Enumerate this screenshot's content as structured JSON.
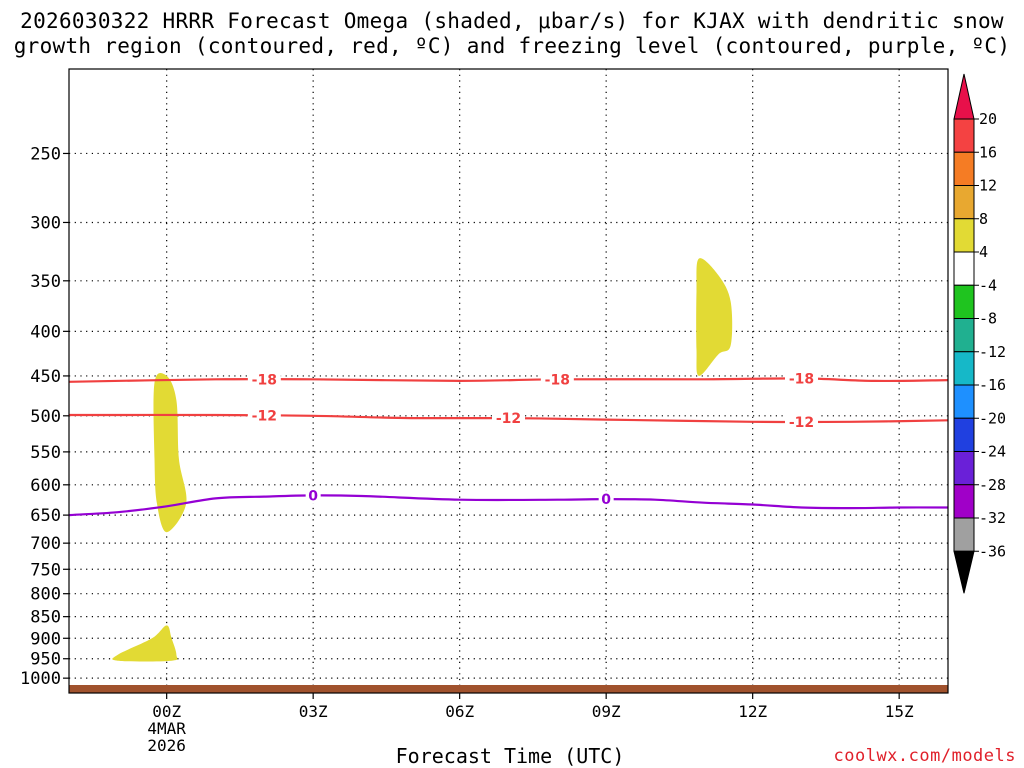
{
  "title_line1": "2026030322 HRRR Forecast Omega (shaded, μbar/s) for KJAX with dendritic snow",
  "title_line2": "growth region (contoured, red, ºC) and freezing level (contoured, purple, ºC)",
  "credit": "coolwx.com/models",
  "chart_data": {
    "type": "contour",
    "xlabel": "Forecast Time (UTC)",
    "ylabel": "",
    "x_unit": "hours since 2026-03-04 00Z",
    "xlim": [
      -2,
      16
    ],
    "ylim_hpa": [
      1040,
      200
    ],
    "y_scale": "log-pressure",
    "x_ticks": [
      {
        "x": 0,
        "lines": [
          "00Z",
          "4MAR",
          "2026"
        ]
      },
      {
        "x": 3,
        "lines": [
          "03Z"
        ]
      },
      {
        "x": 6,
        "lines": [
          "06Z"
        ]
      },
      {
        "x": 9,
        "lines": [
          "09Z"
        ]
      },
      {
        "x": 12,
        "lines": [
          "12Z"
        ]
      },
      {
        "x": 15,
        "lines": [
          "15Z"
        ]
      }
    ],
    "y_ticks": [
      250,
      300,
      350,
      400,
      450,
      500,
      550,
      600,
      650,
      700,
      750,
      800,
      850,
      900,
      950,
      1000
    ],
    "grid": true,
    "contours": [
      {
        "name": "-18",
        "color": "#f04040",
        "labels_at_x": [
          2,
          8,
          13
        ],
        "points": [
          [
            -2,
            457
          ],
          [
            1,
            454
          ],
          [
            3,
            454
          ],
          [
            6,
            456
          ],
          [
            8,
            454
          ],
          [
            11,
            454
          ],
          [
            13,
            453
          ],
          [
            14.5,
            456
          ],
          [
            16,
            455
          ]
        ]
      },
      {
        "name": "-12",
        "color": "#f04040",
        "labels_at_x": [
          2,
          7,
          13
        ],
        "points": [
          [
            -2,
            499
          ],
          [
            1,
            499
          ],
          [
            3,
            500
          ],
          [
            5,
            503
          ],
          [
            7,
            503
          ],
          [
            9,
            505
          ],
          [
            12,
            508
          ],
          [
            14,
            508
          ],
          [
            16,
            506
          ]
        ]
      },
      {
        "name": "0",
        "color": "#9400d3",
        "labels_at_x": [
          3,
          9
        ],
        "points": [
          [
            -2,
            650
          ],
          [
            -1,
            645
          ],
          [
            0,
            635
          ],
          [
            1,
            622
          ],
          [
            2,
            619
          ],
          [
            3,
            617
          ],
          [
            4,
            618
          ],
          [
            6,
            624
          ],
          [
            8,
            624
          ],
          [
            9,
            623
          ],
          [
            10,
            624
          ],
          [
            11,
            629
          ],
          [
            12,
            632
          ],
          [
            13,
            637
          ],
          [
            14,
            638
          ],
          [
            15,
            637
          ],
          [
            16,
            637
          ]
        ]
      }
    ],
    "shaded_regions": [
      {
        "level": "4 to 8",
        "color": "#e2da34",
        "points": [
          [
            -0.25,
            458
          ],
          [
            0,
            450
          ],
          [
            0.2,
            480
          ],
          [
            0.25,
            560
          ],
          [
            0.4,
            630
          ],
          [
            0,
            680
          ],
          [
            -0.2,
            630
          ],
          [
            -0.25,
            560
          ]
        ]
      },
      {
        "level": "4 to 8",
        "color": "#e2da34",
        "points": [
          [
            10.9,
            330
          ],
          [
            11.3,
            345
          ],
          [
            11.55,
            370
          ],
          [
            11.55,
            415
          ],
          [
            11.3,
            425
          ],
          [
            10.9,
            450
          ],
          [
            10.85,
            420
          ],
          [
            10.85,
            360
          ]
        ]
      },
      {
        "level": "4 to 8",
        "color": "#e2da34",
        "points": [
          [
            -1,
            940
          ],
          [
            -0.3,
            900
          ],
          [
            0,
            870
          ],
          [
            0.1,
            900
          ],
          [
            0.2,
            940
          ],
          [
            0.1,
            955
          ],
          [
            -1,
            955
          ]
        ]
      }
    ],
    "surface": {
      "color": "#a0522d",
      "label": "ground"
    }
  },
  "colorbar": {
    "levels": [
      "20",
      "16",
      "12",
      "8",
      "4",
      "-4",
      "-8",
      "-12",
      "-16",
      "-20",
      "-24",
      "-28",
      "-32",
      "-36"
    ],
    "colors": [
      "#e8104a",
      "#f44242",
      "#f57c24",
      "#e8a830",
      "#e2da34",
      "#ffffff",
      "#1fc41f",
      "#20b090",
      "#16b8c8",
      "#1e90ff",
      "#2040e0",
      "#6a20d8",
      "#a000c8",
      "#a0a0a0",
      "#000000"
    ]
  }
}
